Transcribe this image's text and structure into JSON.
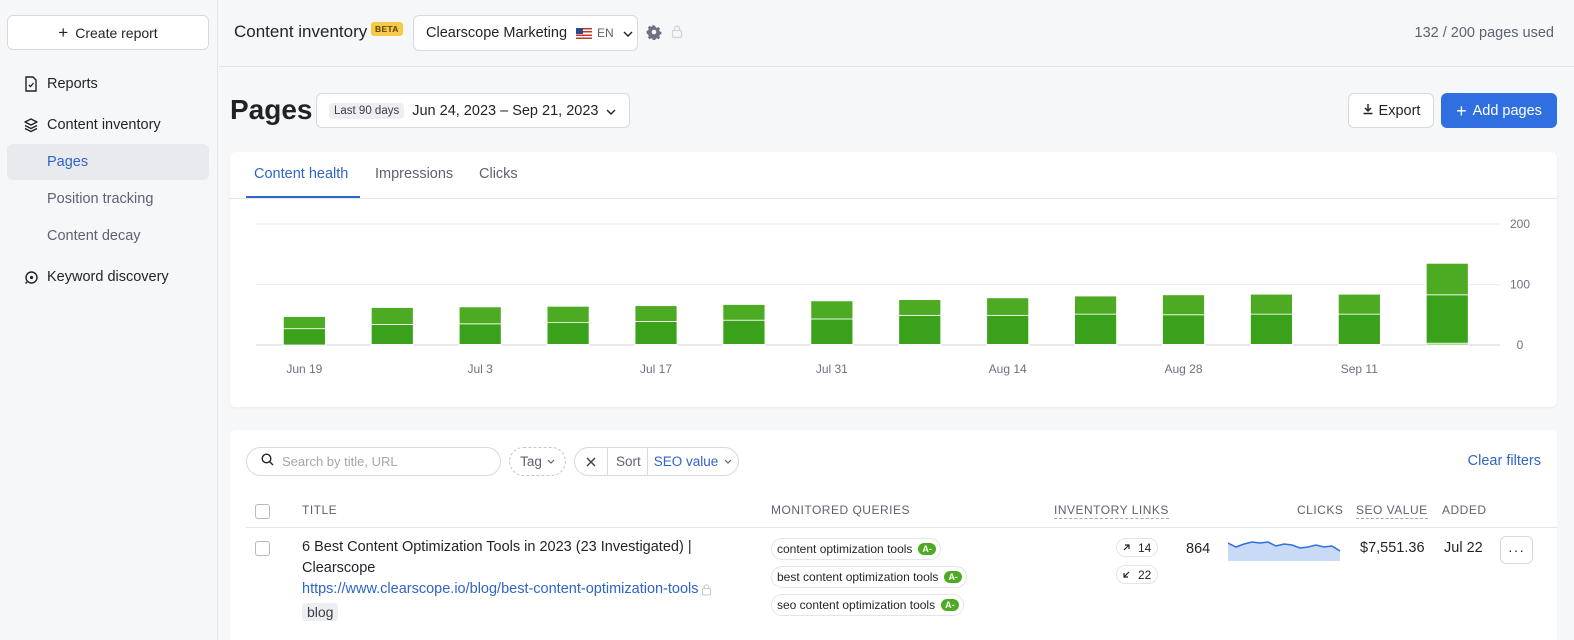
{
  "sidebar": {
    "create_label": "Create report",
    "items": [
      {
        "label": "Reports"
      },
      {
        "label": "Content inventory"
      },
      {
        "label": "Pages"
      },
      {
        "label": "Position tracking"
      },
      {
        "label": "Content decay"
      },
      {
        "label": "Keyword discovery"
      }
    ]
  },
  "topbar": {
    "title": "Content inventory",
    "badge": "BETA",
    "workspace": "Clearscope Marketing",
    "lang": "EN",
    "usage": "132 / 200 pages used"
  },
  "header": {
    "title": "Pages",
    "range_chip": "Last 90 days",
    "range": "Jun 24, 2023 – Sep 21, 2023",
    "export_label": "Export",
    "add_label": "Add pages"
  },
  "tabs": [
    {
      "label": "Content health"
    },
    {
      "label": "Impressions"
    },
    {
      "label": "Clicks"
    }
  ],
  "colors": {
    "accent": "#2f64c8",
    "primary_button": "#2f6fe0",
    "bar_dark": "#3aa21a",
    "bar_light": "#4caa23"
  },
  "chart_data": {
    "type": "bar",
    "stacked": true,
    "x_tick_labels": [
      "Jun 19",
      "Jul 3",
      "Jul 17",
      "Jul 31",
      "Aug 14",
      "Aug 28",
      "Sep 11"
    ],
    "y_tick_labels": [
      "200",
      "100",
      "0"
    ],
    "ylim": [
      0,
      200
    ],
    "grid": true,
    "series": [
      {
        "values": [
          0,
          1,
          1,
          1,
          1,
          1,
          1,
          1,
          1,
          1,
          1,
          1,
          1,
          3
        ]
      },
      {
        "values": [
          27,
          33,
          34,
          36,
          38,
          40,
          42,
          48,
          48,
          50,
          49,
          50,
          50,
          80
        ]
      },
      {
        "values": [
          20,
          28,
          28,
          27,
          26,
          26,
          30,
          26,
          29,
          30,
          33,
          33,
          33,
          52
        ]
      }
    ]
  },
  "table": {
    "search_placeholder": "Search by title, URL",
    "tag_label": "Tag",
    "sort_label": "Sort",
    "sort_value": "SEO value",
    "clear_label": "Clear filters",
    "columns": [
      "TITLE",
      "MONITORED QUERIES",
      "INVENTORY LINKS",
      "CLICKS",
      "SEO VALUE",
      "ADDED"
    ],
    "rows": [
      {
        "title": "6 Best Content Optimization Tools in 2023 (23 Investigated) | Clearscope",
        "url": "https://www.clearscope.io/blog/best-content-optimization-tools",
        "tag": "blog",
        "queries": [
          {
            "text": "content optimization tools",
            "grade": "A-"
          },
          {
            "text": "best content optimization tools",
            "grade": "A-"
          },
          {
            "text": "seo content optimization tools",
            "grade": "A-"
          }
        ],
        "links_out": "14",
        "links_in": "22",
        "clicks": "864",
        "seo_value": "$7,551.36",
        "added": "Jul 22",
        "more": "···"
      }
    ]
  }
}
